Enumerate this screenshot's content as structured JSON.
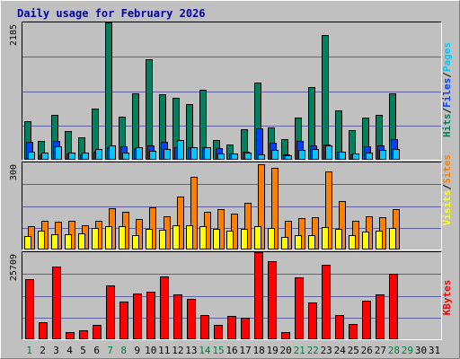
{
  "chart_data": [
    {
      "type": "bar",
      "title": "Daily usage for February 2026",
      "panel": "pages-files-hits",
      "ylabel_parts": [
        {
          "text": "Pages",
          "color": "#00c8ff"
        },
        {
          "text": "/",
          "color": "#000000"
        },
        {
          "text": "Files",
          "color": "#0040ff"
        },
        {
          "text": "/",
          "color": "#000000"
        },
        {
          "text": "Hits",
          "color": "#00805c"
        }
      ],
      "ymax_label": "2185",
      "ylim": [
        0,
        2185
      ],
      "categories": [
        "1",
        "2",
        "3",
        "4",
        "5",
        "6",
        "7",
        "8",
        "9",
        "10",
        "11",
        "12",
        "13",
        "14",
        "15",
        "16",
        "17",
        "18",
        "19",
        "20",
        "21",
        "22",
        "23",
        "24",
        "25",
        "26",
        "27",
        "28",
        "29",
        "30",
        "31"
      ],
      "series": [
        {
          "name": "Hits",
          "color": "#00805c",
          "values": [
            610,
            300,
            720,
            455,
            350,
            815,
            2185,
            680,
            1050,
            1600,
            1040,
            990,
            885,
            1115,
            315,
            240,
            490,
            1230,
            520,
            330,
            675,
            1150,
            1990,
            790,
            470,
            665,
            710,
            1055,
            null,
            null,
            null
          ]
        },
        {
          "name": "Files",
          "color": "#0040ff",
          "values": [
            290,
            80,
            305,
            100,
            85,
            130,
            200,
            210,
            185,
            230,
            285,
            200,
            200,
            200,
            180,
            100,
            130,
            495,
            265,
            80,
            295,
            230,
            245,
            130,
            85,
            215,
            230,
            335,
            null,
            null,
            null
          ]
        },
        {
          "name": "Pages",
          "color": "#00c8ff",
          "values": [
            135,
            115,
            215,
            115,
            110,
            175,
            230,
            115,
            200,
            145,
            175,
            320,
            195,
            195,
            105,
            100,
            120,
            85,
            150,
            65,
            150,
            175,
            230,
            135,
            95,
            115,
            155,
            175,
            null,
            null,
            null
          ]
        }
      ]
    },
    {
      "type": "bar",
      "panel": "sites-visits",
      "ylabel_parts": [
        {
          "text": "Sites",
          "color": "#ff8000"
        },
        {
          "text": "/",
          "color": "#000000"
        },
        {
          "text": "Visits",
          "color": "#ffff00"
        }
      ],
      "ymax_label": "300",
      "ylim": [
        0,
        300
      ],
      "categories": [
        "1",
        "2",
        "3",
        "4",
        "5",
        "6",
        "7",
        "8",
        "9",
        "10",
        "11",
        "12",
        "13",
        "14",
        "15",
        "16",
        "17",
        "18",
        "19",
        "20",
        "21",
        "22",
        "23",
        "24",
        "25",
        "26",
        "27",
        "28",
        "29",
        "30",
        "31"
      ],
      "series": [
        {
          "name": "Sites",
          "color": "#ff8000",
          "values": [
            80,
            100,
            95,
            98,
            85,
            100,
            142,
            130,
            105,
            145,
            115,
            183,
            250,
            130,
            138,
            125,
            162,
            295,
            280,
            98,
            108,
            110,
            270,
            168,
            100,
            115,
            110,
            140,
            null,
            null,
            null
          ]
        },
        {
          "name": "Visits",
          "color": "#ffff00",
          "values": [
            45,
            65,
            52,
            52,
            55,
            75,
            80,
            80,
            48,
            70,
            68,
            83,
            85,
            80,
            70,
            65,
            70,
            80,
            75,
            42,
            48,
            50,
            78,
            70,
            50,
            62,
            65,
            75,
            null,
            null,
            null
          ]
        }
      ]
    },
    {
      "type": "bar",
      "panel": "kbytes",
      "ylabel_parts": [
        {
          "text": "KBytes",
          "color": "#ff0000"
        }
      ],
      "ymax_label": "25709",
      "ylim": [
        0,
        25709
      ],
      "categories": [
        "1",
        "2",
        "3",
        "4",
        "5",
        "6",
        "7",
        "8",
        "9",
        "10",
        "11",
        "12",
        "13",
        "14",
        "15",
        "16",
        "17",
        "18",
        "19",
        "20",
        "21",
        "22",
        "23",
        "24",
        "25",
        "26",
        "27",
        "28",
        "29",
        "30",
        "31"
      ],
      "series": [
        {
          "name": "KBytes",
          "color": "#ff0000",
          "values": [
            17700,
            5100,
            21600,
            2200,
            2600,
            4300,
            15800,
            11000,
            13500,
            14000,
            18600,
            13300,
            11800,
            7200,
            4200,
            7000,
            6300,
            25709,
            23100,
            2200,
            18200,
            10800,
            22000,
            7200,
            4500,
            11500,
            13200,
            19400,
            null,
            null,
            null
          ]
        }
      ]
    }
  ],
  "colors": {
    "background": "#c0c0c0",
    "title": "#0000a0",
    "grid": "#6060a0",
    "weekend_label": "#008040",
    "weekday_label": "#000000"
  },
  "weekend_days": [
    1,
    7,
    8,
    14,
    15,
    21,
    22,
    28,
    29
  ]
}
